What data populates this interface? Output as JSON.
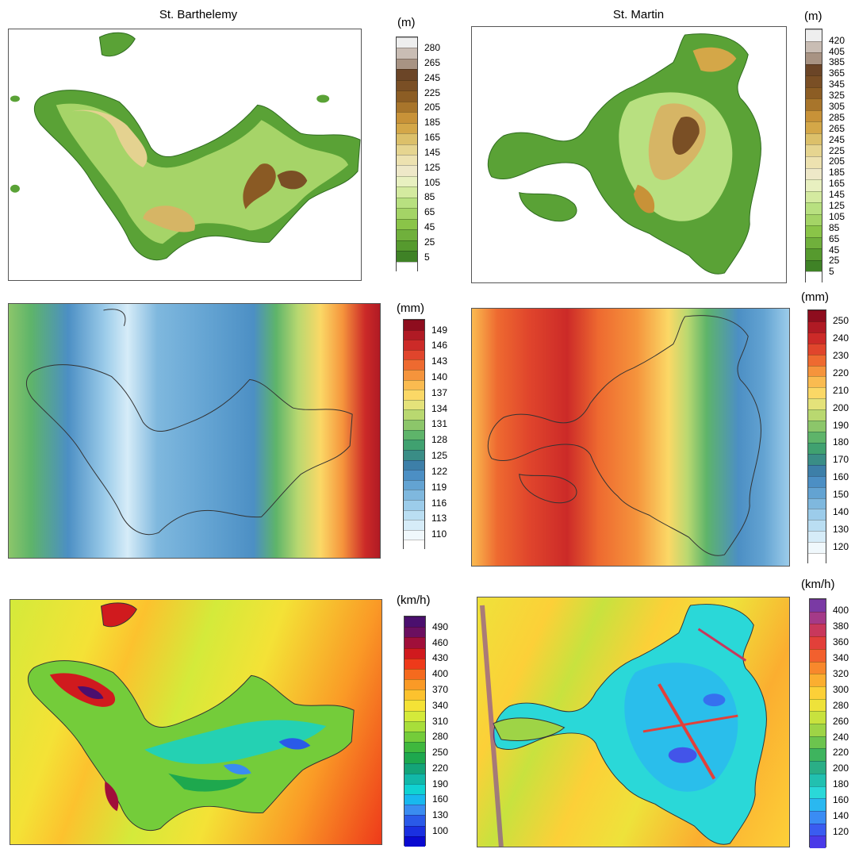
{
  "titles": {
    "left": "St. Barthelemy",
    "right": "St. Martin"
  },
  "legends": [
    {
      "id": "elev-left",
      "unit": "(m)",
      "labels": [
        "280",
        "265",
        "245",
        "225",
        "205",
        "185",
        "165",
        "145",
        "125",
        "105",
        "85",
        "65",
        "45",
        "25",
        "5"
      ],
      "colors": [
        "#eeeeee",
        "#c9bdb4",
        "#a89383",
        "#6b4527",
        "#7a4f25",
        "#8c5d24",
        "#a8752b",
        "#c89238",
        "#d4a748",
        "#dcc06a",
        "#e6d590",
        "#ede2b0",
        "#eee8c8",
        "#e8f0c0",
        "#d4eaa0",
        "#b8e080",
        "#a4d466",
        "#8ac448",
        "#70b03c",
        "#569a2e",
        "#3f8226",
        "#ffffff"
      ]
    },
    {
      "id": "elev-right",
      "unit": "(m)",
      "labels": [
        "420",
        "405",
        "385",
        "365",
        "345",
        "325",
        "305",
        "285",
        "265",
        "245",
        "225",
        "205",
        "185",
        "165",
        "145",
        "125",
        "105",
        "85",
        "65",
        "45",
        "25",
        "5"
      ],
      "colors": [
        "#eeeeee",
        "#c9bdb4",
        "#a89383",
        "#6b4527",
        "#7a4f25",
        "#8c5d24",
        "#a8752b",
        "#c89238",
        "#d4a748",
        "#dcc06a",
        "#e6d590",
        "#ede2b0",
        "#eee8c8",
        "#e8f0c0",
        "#d4eaa0",
        "#b8e080",
        "#a4d466",
        "#8ac448",
        "#70b03c",
        "#569a2e",
        "#3f8226",
        "#ffffff"
      ]
    },
    {
      "id": "rain-left",
      "unit": "(mm)",
      "labels": [
        "149",
        "146",
        "143",
        "140",
        "137",
        "134",
        "131",
        "128",
        "125",
        "122",
        "119",
        "116",
        "113",
        "110"
      ],
      "colors": [
        "#8e0d1e",
        "#b01a24",
        "#cc2a28",
        "#e0452c",
        "#ee6a30",
        "#f5943c",
        "#fabb50",
        "#fbd866",
        "#e4e27a",
        "#b9d870",
        "#8cc66a",
        "#5eb46a",
        "#40a170",
        "#3a8d86",
        "#3d7fa8",
        "#4c8fc4",
        "#63a3d2",
        "#7fb8de",
        "#9cccea",
        "#badef2",
        "#d6ecf8",
        "#f0f8fc",
        "#ffffff"
      ]
    },
    {
      "id": "rain-right",
      "unit": "(mm)",
      "labels": [
        "250",
        "240",
        "230",
        "220",
        "210",
        "200",
        "190",
        "180",
        "170",
        "160",
        "150",
        "140",
        "130",
        "120"
      ],
      "colors": [
        "#8e0d1e",
        "#b01a24",
        "#cc2a28",
        "#e0452c",
        "#ee6a30",
        "#f5943c",
        "#fabb50",
        "#fbd866",
        "#e4e27a",
        "#b9d870",
        "#8cc66a",
        "#5eb46a",
        "#40a170",
        "#3a8d86",
        "#3d7fa8",
        "#4c8fc4",
        "#63a3d2",
        "#7fb8de",
        "#9cccea",
        "#badef2",
        "#d6ecf8",
        "#f0f8fc",
        "#ffffff"
      ]
    },
    {
      "id": "wind-left",
      "unit": "(km/h)",
      "labels": [
        "490",
        "460",
        "430",
        "400",
        "370",
        "340",
        "310",
        "280",
        "250",
        "220",
        "190",
        "160",
        "130",
        "100"
      ],
      "colors": [
        "#4b0f6e",
        "#6b0f60",
        "#a00f3a",
        "#d01a1e",
        "#ee3a1a",
        "#f56a1e",
        "#fa9a26",
        "#fcc22e",
        "#f4e236",
        "#d4ea3a",
        "#a8de3a",
        "#74cc3a",
        "#3fb83e",
        "#1ea84e",
        "#14a478",
        "#12b8a8",
        "#10d2d2",
        "#18b8ee",
        "#3a8cf0",
        "#2a5ae8",
        "#1a30e0",
        "#0a0ad0"
      ]
    },
    {
      "id": "wind-right",
      "unit": "(km/h)",
      "labels": [
        "400",
        "380",
        "360",
        "340",
        "320",
        "300",
        "280",
        "260",
        "240",
        "220",
        "200",
        "180",
        "160",
        "140",
        "120"
      ],
      "colors": [
        "#7a3aa4",
        "#a43a88",
        "#c8385c",
        "#e2403a",
        "#f2602e",
        "#f8882c",
        "#fbae30",
        "#fcd038",
        "#eee23a",
        "#c8e23e",
        "#9ed446",
        "#6cc44e",
        "#3eb45e",
        "#2aae86",
        "#22c0b0",
        "#2ad8d8",
        "#2ab8f0",
        "#3a8cf4",
        "#3a5cf0",
        "#4a3ae8"
      ]
    }
  ]
}
